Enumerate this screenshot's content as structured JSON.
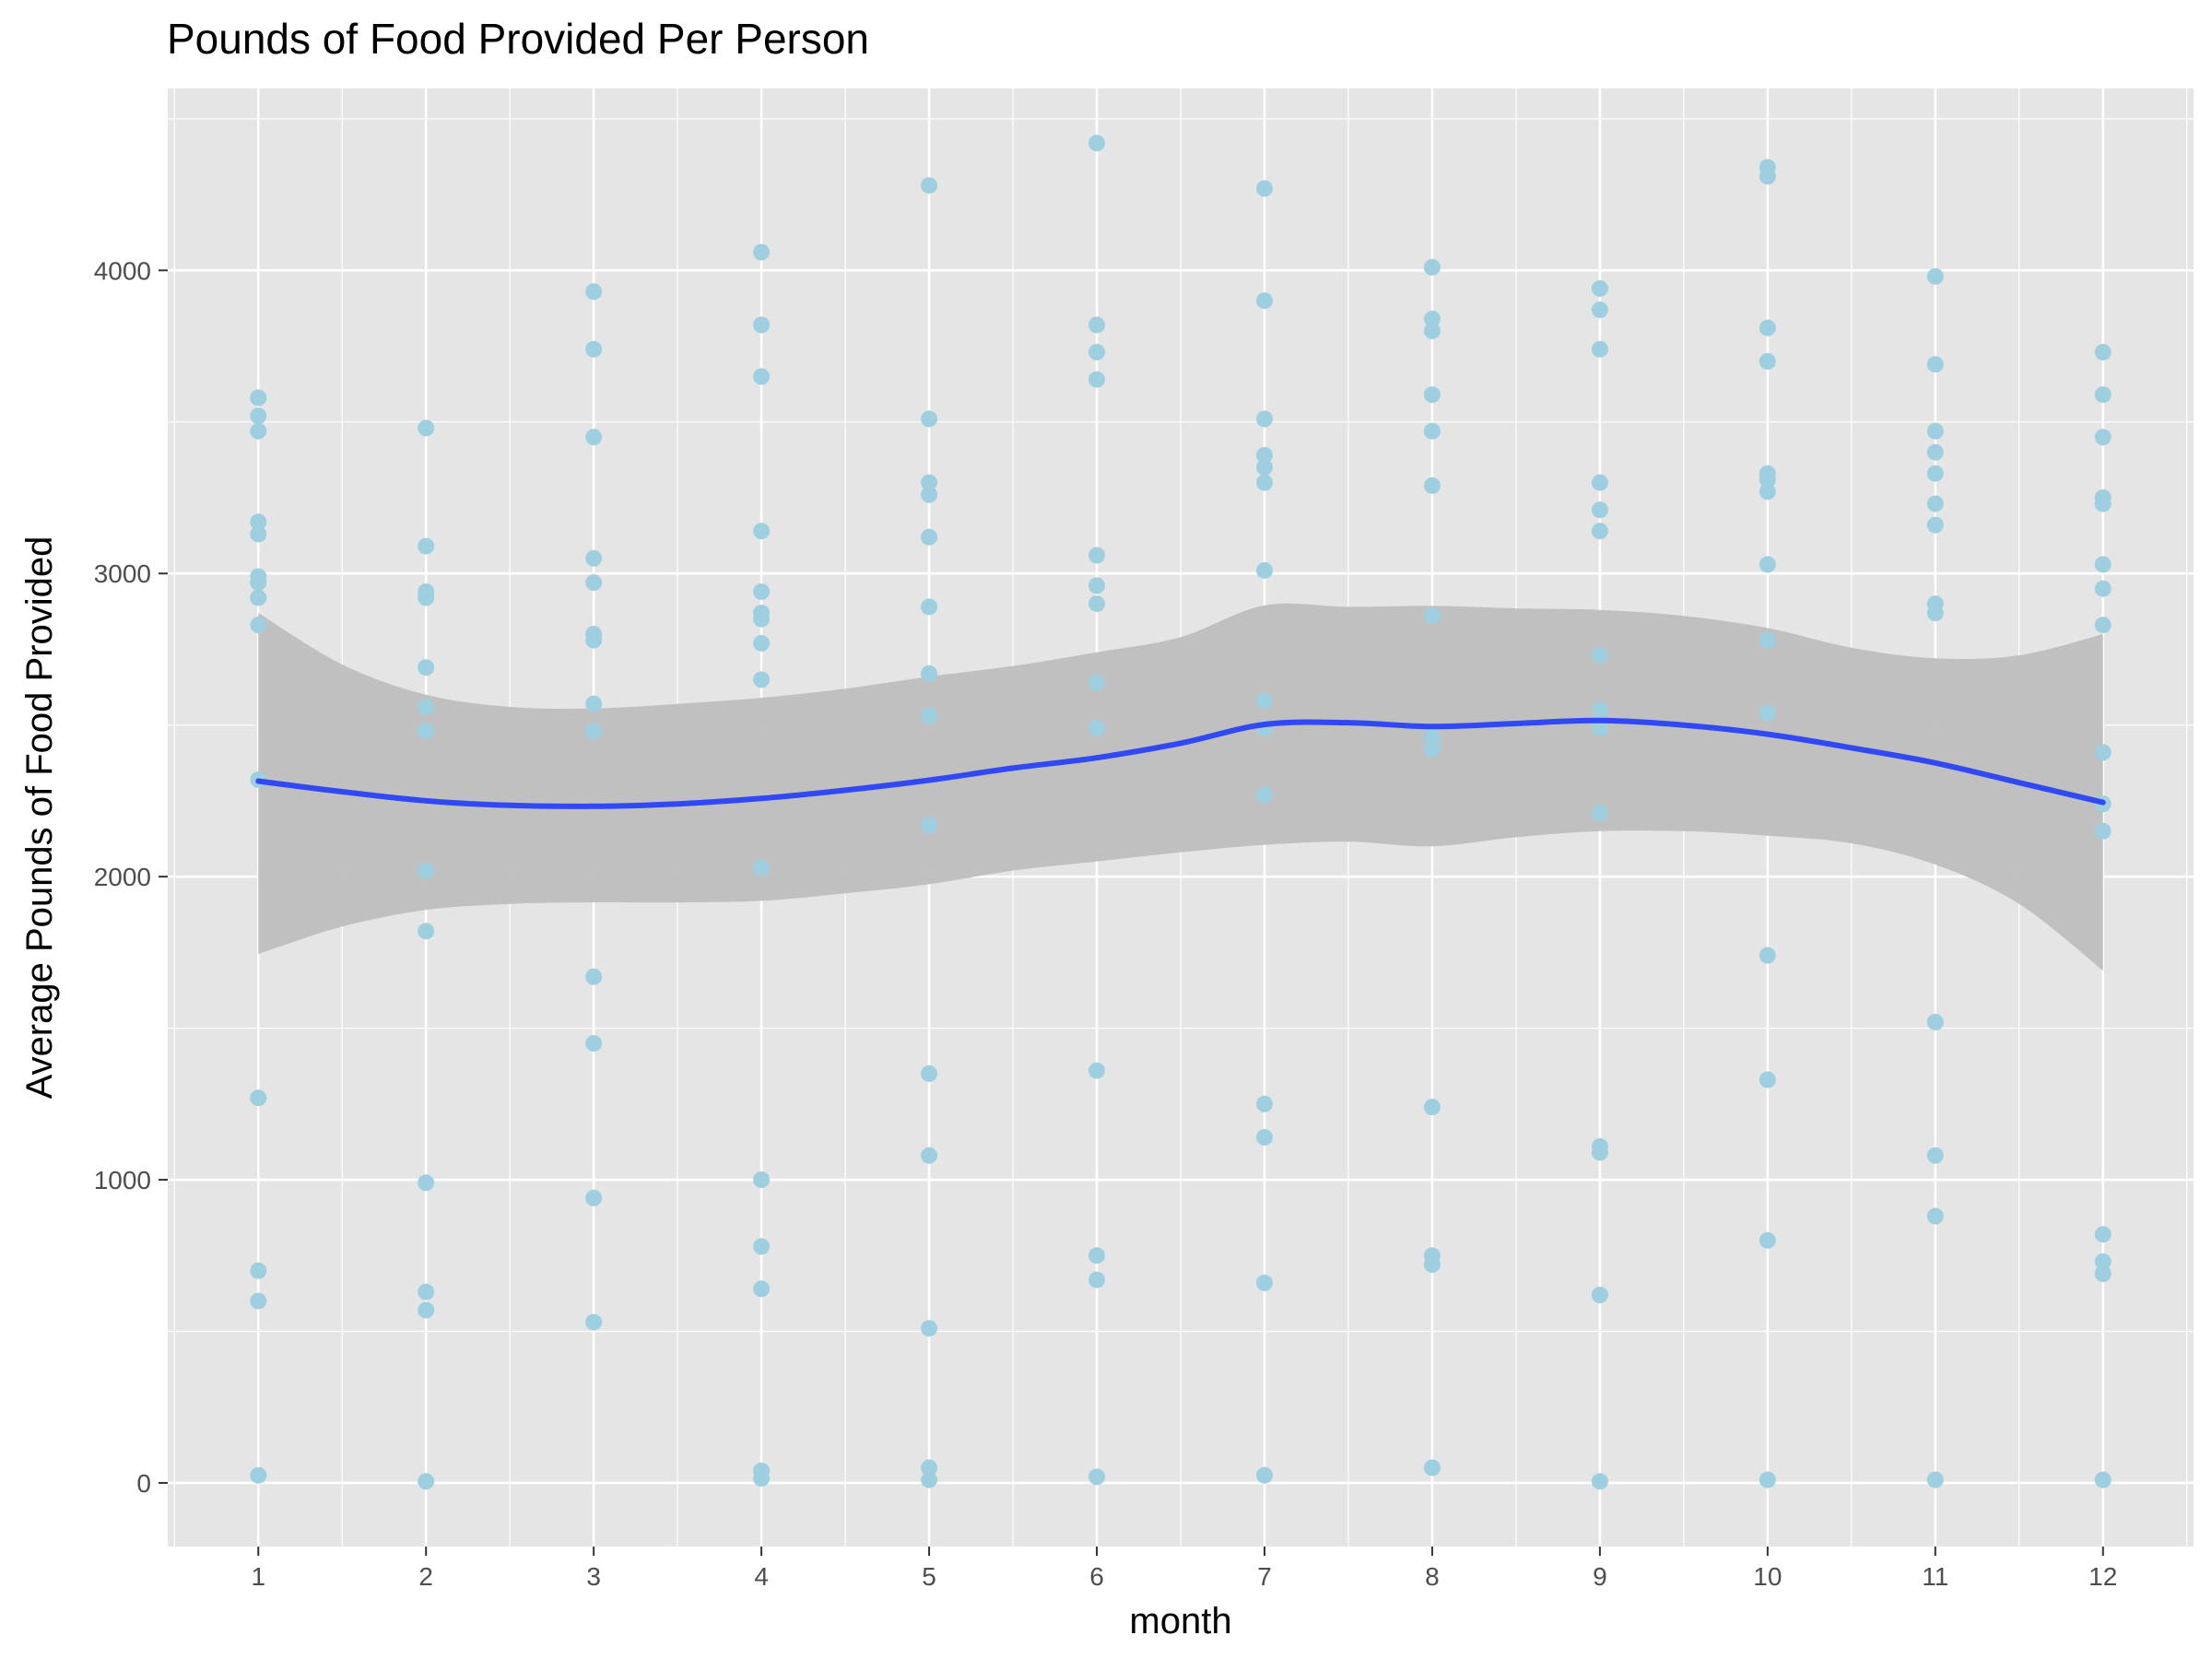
{
  "chart_data": {
    "type": "scatter",
    "title": "Pounds of Food Provided Per Person",
    "xlabel": "month",
    "ylabel": "Average Pounds of Food Provided",
    "xlim": [
      0.46,
      12.54
    ],
    "ylim": [
      -210,
      4600
    ],
    "x_ticks": [
      "1",
      "2",
      "3",
      "4",
      "5",
      "6",
      "7",
      "8",
      "9",
      "10",
      "11",
      "12"
    ],
    "y_ticks": [
      "0",
      "1000",
      "2000",
      "3000",
      "4000"
    ],
    "grid": true,
    "legend": "none",
    "colors": {
      "panel": "#e5e5e5",
      "grid": "#ffffff",
      "points": "#9ecfe0",
      "smooth_line": "#3049f5",
      "confidence_band": "#bebebe"
    },
    "series": [
      {
        "type": "scatter",
        "points": [
          [
            1,
            3580
          ],
          [
            1,
            3520
          ],
          [
            1,
            3470
          ],
          [
            1,
            3170
          ],
          [
            1,
            3130
          ],
          [
            1,
            2990
          ],
          [
            1,
            2970
          ],
          [
            1,
            2920
          ],
          [
            1,
            2830
          ],
          [
            1,
            2320
          ],
          [
            1,
            1270
          ],
          [
            1,
            700
          ],
          [
            1,
            600
          ],
          [
            1,
            25
          ],
          [
            2,
            3480
          ],
          [
            2,
            3090
          ],
          [
            2,
            2940
          ],
          [
            2,
            2920
          ],
          [
            2,
            2690
          ],
          [
            2,
            2560
          ],
          [
            2,
            2480
          ],
          [
            2,
            2020
          ],
          [
            2,
            1820
          ],
          [
            2,
            990
          ],
          [
            2,
            630
          ],
          [
            2,
            570
          ],
          [
            2,
            5
          ],
          [
            3,
            3930
          ],
          [
            3,
            3740
          ],
          [
            3,
            3450
          ],
          [
            3,
            3050
          ],
          [
            3,
            2970
          ],
          [
            3,
            2800
          ],
          [
            3,
            2780
          ],
          [
            3,
            2570
          ],
          [
            3,
            2480
          ],
          [
            3,
            1670
          ],
          [
            3,
            1450
          ],
          [
            3,
            940
          ],
          [
            3,
            530
          ],
          [
            4,
            4060
          ],
          [
            4,
            3820
          ],
          [
            4,
            3650
          ],
          [
            4,
            3140
          ],
          [
            4,
            2940
          ],
          [
            4,
            2870
          ],
          [
            4,
            2850
          ],
          [
            4,
            2770
          ],
          [
            4,
            2650
          ],
          [
            4,
            2030
          ],
          [
            4,
            1000
          ],
          [
            4,
            780
          ],
          [
            4,
            640
          ],
          [
            4,
            40
          ],
          [
            4,
            15
          ],
          [
            5,
            4280
          ],
          [
            5,
            3510
          ],
          [
            5,
            3300
          ],
          [
            5,
            3260
          ],
          [
            5,
            3120
          ],
          [
            5,
            2890
          ],
          [
            5,
            2670
          ],
          [
            5,
            2530
          ],
          [
            5,
            2170
          ],
          [
            5,
            1350
          ],
          [
            5,
            1080
          ],
          [
            5,
            510
          ],
          [
            5,
            50
          ],
          [
            5,
            10
          ],
          [
            6,
            4420
          ],
          [
            6,
            3820
          ],
          [
            6,
            3730
          ],
          [
            6,
            3640
          ],
          [
            6,
            3060
          ],
          [
            6,
            2960
          ],
          [
            6,
            2900
          ],
          [
            6,
            2640
          ],
          [
            6,
            2490
          ],
          [
            6,
            1360
          ],
          [
            6,
            750
          ],
          [
            6,
            670
          ],
          [
            6,
            20
          ],
          [
            7,
            4270
          ],
          [
            7,
            3900
          ],
          [
            7,
            3510
          ],
          [
            7,
            3390
          ],
          [
            7,
            3350
          ],
          [
            7,
            3300
          ],
          [
            7,
            3010
          ],
          [
            7,
            2580
          ],
          [
            7,
            2490
          ],
          [
            7,
            2270
          ],
          [
            7,
            1250
          ],
          [
            7,
            1140
          ],
          [
            7,
            660
          ],
          [
            7,
            25
          ],
          [
            8,
            4010
          ],
          [
            8,
            3840
          ],
          [
            8,
            3800
          ],
          [
            8,
            3590
          ],
          [
            8,
            3470
          ],
          [
            8,
            3290
          ],
          [
            8,
            2860
          ],
          [
            8,
            2460
          ],
          [
            8,
            2420
          ],
          [
            8,
            1240
          ],
          [
            8,
            750
          ],
          [
            8,
            720
          ],
          [
            8,
            50
          ],
          [
            9,
            3940
          ],
          [
            9,
            3870
          ],
          [
            9,
            3740
          ],
          [
            9,
            3300
          ],
          [
            9,
            3210
          ],
          [
            9,
            3140
          ],
          [
            9,
            2730
          ],
          [
            9,
            2550
          ],
          [
            9,
            2490
          ],
          [
            9,
            2210
          ],
          [
            9,
            1110
          ],
          [
            9,
            1090
          ],
          [
            9,
            620
          ],
          [
            9,
            5
          ],
          [
            10,
            4340
          ],
          [
            10,
            4310
          ],
          [
            10,
            3810
          ],
          [
            10,
            3700
          ],
          [
            10,
            3330
          ],
          [
            10,
            3310
          ],
          [
            10,
            3270
          ],
          [
            10,
            3030
          ],
          [
            10,
            2780
          ],
          [
            10,
            2540
          ],
          [
            10,
            1740
          ],
          [
            10,
            1330
          ],
          [
            10,
            800
          ],
          [
            10,
            10
          ],
          [
            11,
            3980
          ],
          [
            11,
            3690
          ],
          [
            11,
            3470
          ],
          [
            11,
            3400
          ],
          [
            11,
            3330
          ],
          [
            11,
            3230
          ],
          [
            11,
            3160
          ],
          [
            11,
            2900
          ],
          [
            11,
            2870
          ],
          [
            11,
            1520
          ],
          [
            11,
            1080
          ],
          [
            11,
            880
          ],
          [
            11,
            10
          ],
          [
            12,
            3730
          ],
          [
            12,
            3590
          ],
          [
            12,
            3450
          ],
          [
            12,
            3250
          ],
          [
            12,
            3230
          ],
          [
            12,
            3030
          ],
          [
            12,
            2950
          ],
          [
            12,
            2830
          ],
          [
            12,
            2410
          ],
          [
            12,
            2240
          ],
          [
            12,
            2150
          ],
          [
            12,
            820
          ],
          [
            12,
            730
          ],
          [
            12,
            690
          ],
          [
            12,
            10
          ]
        ]
      },
      {
        "type": "line",
        "smooth": true,
        "x": [
          1,
          1.5,
          2,
          2.5,
          3,
          3.5,
          4,
          4.5,
          5,
          5.5,
          6,
          6.5,
          7,
          7.5,
          8,
          8.5,
          9,
          9.5,
          10,
          10.5,
          11,
          11.5,
          12
        ],
        "y": [
          2315,
          2280,
          2250,
          2235,
          2232,
          2240,
          2258,
          2285,
          2318,
          2358,
          2392,
          2440,
          2502,
          2508,
          2495,
          2505,
          2515,
          2500,
          2470,
          2425,
          2375,
          2310,
          2245
        ],
        "band_upper": [
          2870,
          2700,
          2600,
          2560,
          2555,
          2570,
          2590,
          2620,
          2660,
          2695,
          2740,
          2790,
          2895,
          2890,
          2893,
          2885,
          2880,
          2860,
          2820,
          2755,
          2720,
          2730,
          2800
        ],
        "band_lower": [
          1745,
          1835,
          1890,
          1910,
          1915,
          1915,
          1920,
          1945,
          1975,
          2020,
          2050,
          2080,
          2105,
          2115,
          2100,
          2130,
          2150,
          2150,
          2135,
          2110,
          2040,
          1910,
          1690
        ]
      }
    ]
  }
}
